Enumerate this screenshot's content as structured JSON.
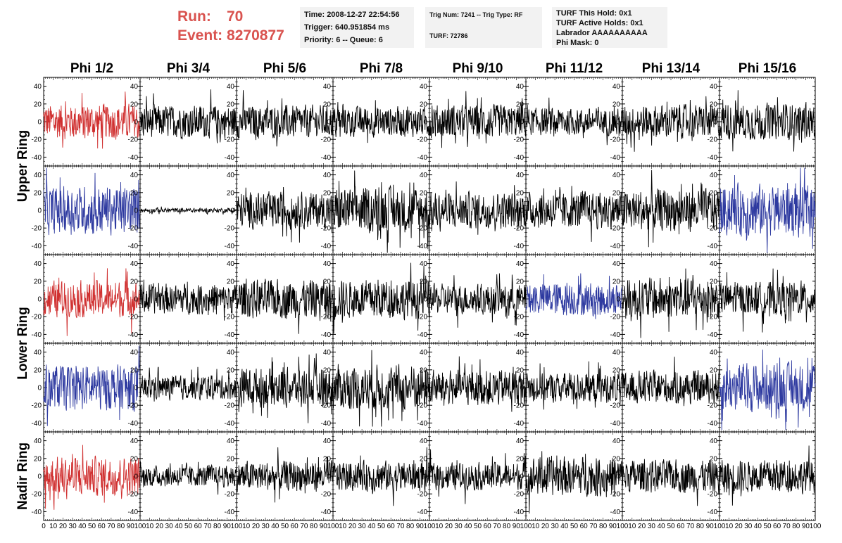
{
  "header": {
    "run_label": "Run:",
    "run_value": "70",
    "event_label": "Event:",
    "event_value": "8270877",
    "time_line": "Time: 2008-12-27 22:54:56",
    "trigger_line": "Trigger: 640.951854 ms",
    "priority_line": "Priority: 6 -- Queue: 6",
    "trig_line": "Trig Num: 7241 -- Trig Type: RF",
    "turf_line": "TURF: 72786",
    "hold_line": "TURF This Hold: 0x1",
    "active_holds_line": "TURF Active Holds: 0x1",
    "labrador_line": "Labrador AAAAAAAAAA",
    "phi_mask_line": "Phi Mask: 0"
  },
  "colors": {
    "red": "#d03030",
    "blue": "#2e3aa0",
    "black": "#000000",
    "header_text": "#d9534f"
  },
  "chart_data": {
    "type": "line",
    "columns": [
      "Phi 1/2",
      "Phi 3/4",
      "Phi 5/6",
      "Phi 7/8",
      "Phi 9/10",
      "Phi 11/12",
      "Phi 13/14",
      "Phi 15/16"
    ],
    "rows": [
      "Upper Ring",
      "Upper Ring",
      "Lower Ring",
      "Lower Ring",
      "Nadir Ring"
    ],
    "row_labels": [
      "Upper Ring",
      "Lower Ring",
      "Nadir Ring"
    ],
    "xlim": [
      0,
      100
    ],
    "ylim": [
      -50,
      50
    ],
    "x_ticks": [
      "0",
      "10",
      "20",
      "30",
      "40",
      "50",
      "60",
      "70",
      "80",
      "90",
      "100"
    ],
    "y_ticks": [
      "40",
      "20",
      "0",
      "-20",
      "-40"
    ],
    "panels": [
      [
        {
          "color": "red",
          "amp": 12
        },
        {
          "color": "black",
          "amp": 11
        },
        {
          "color": "black",
          "amp": 11
        },
        {
          "color": "black",
          "amp": 10
        },
        {
          "color": "black",
          "amp": 11
        },
        {
          "color": "black",
          "amp": 9
        },
        {
          "color": "black",
          "amp": 11
        },
        {
          "color": "black",
          "amp": 12
        }
      ],
      [
        {
          "color": "blue",
          "amp": 16
        },
        {
          "color": "black",
          "amp": 1.5
        },
        {
          "color": "black",
          "amp": 12
        },
        {
          "color": "black",
          "amp": 15
        },
        {
          "color": "black",
          "amp": 12
        },
        {
          "color": "black",
          "amp": 12
        },
        {
          "color": "black",
          "amp": 14
        },
        {
          "color": "blue",
          "amp": 17
        }
      ],
      [
        {
          "color": "red",
          "amp": 12
        },
        {
          "color": "black",
          "amp": 10
        },
        {
          "color": "black",
          "amp": 13
        },
        {
          "color": "black",
          "amp": 13
        },
        {
          "color": "black",
          "amp": 10
        },
        {
          "color": "blue",
          "amp": 11
        },
        {
          "color": "black",
          "amp": 14
        },
        {
          "color": "black",
          "amp": 11
        }
      ],
      [
        {
          "color": "blue",
          "amp": 15
        },
        {
          "color": "black",
          "amp": 8
        },
        {
          "color": "black",
          "amp": 13
        },
        {
          "color": "black",
          "amp": 15
        },
        {
          "color": "black",
          "amp": 12
        },
        {
          "color": "black",
          "amp": 10
        },
        {
          "color": "black",
          "amp": 11
        },
        {
          "color": "blue",
          "amp": 16
        }
      ],
      [
        {
          "color": "red",
          "amp": 13
        },
        {
          "color": "black",
          "amp": 7
        },
        {
          "color": "black",
          "amp": 10
        },
        {
          "color": "black",
          "amp": 10
        },
        {
          "color": "black",
          "amp": 9
        },
        {
          "color": "black",
          "amp": 13
        },
        {
          "color": "black",
          "amp": 11
        },
        {
          "color": "black",
          "amp": 11
        }
      ]
    ]
  }
}
